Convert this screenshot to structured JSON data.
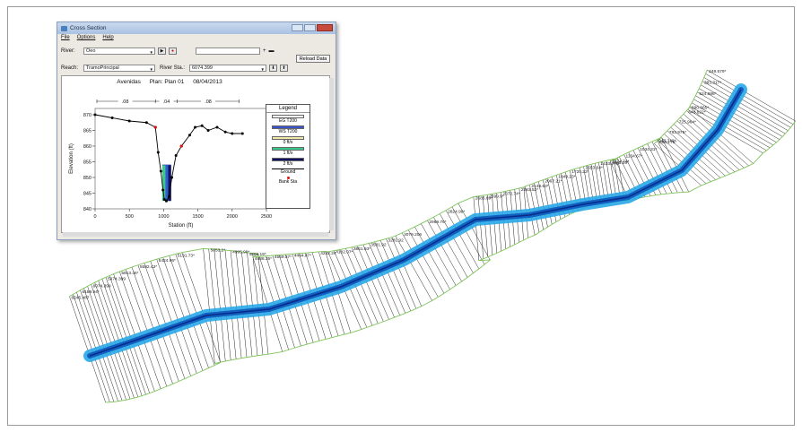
{
  "window": {
    "title": "Cross Section",
    "menu": [
      "File",
      "Options",
      "Help"
    ],
    "river_label": "River:",
    "river_value": "Oeo",
    "reach_label": "Reach:",
    "reach_value": "TramoPrincipal",
    "river_sta_label": "River Sta.:",
    "river_sta_value": "6074.399",
    "reload_label": "Reload Data"
  },
  "plot": {
    "title_parts": [
      "Avenidas",
      "Plan: Plan 01",
      "08/04/2013"
    ],
    "xlabel": "Station (ft)",
    "ylabel": "Elevation (ft)",
    "x_ticks": [
      "0",
      "500",
      "1000",
      "1500",
      "2000",
      "2500"
    ],
    "y_ticks": [
      "870",
      "865",
      "860",
      "855",
      "850",
      "845",
      "840"
    ],
    "manning": [
      ".08",
      ".04",
      ".08"
    ]
  },
  "legend": {
    "title": "Legend",
    "items": [
      {
        "label": "EG T200",
        "color": "#ffffff"
      },
      {
        "label": "WS T200",
        "color": "#3a52c8"
      },
      {
        "label": "0 ft/s",
        "color": "#f0e6a8"
      },
      {
        "label": "1 ft/s",
        "color": "#39c98a"
      },
      {
        "label": "2 ft/s",
        "color": "#101060"
      },
      {
        "label": "Ground",
        "color": "#000000"
      },
      {
        "label": "Bank Sta",
        "color": "#e01010"
      }
    ]
  },
  "chart_data": {
    "type": "line",
    "title": "Avenidas  Plan: Plan 01  08/04/2013",
    "xlabel": "Station (ft)",
    "ylabel": "Elevation (ft)",
    "xlim": [
      0,
      2500
    ],
    "ylim": [
      840,
      872
    ],
    "series": [
      {
        "name": "Ground",
        "x": [
          0,
          250,
          500,
          750,
          880,
          920,
          960,
          990,
          1010,
          1040,
          1080,
          1120,
          1180,
          1260,
          1380,
          1460,
          1560,
          1650,
          1780,
          1900,
          2000,
          2150
        ],
        "y": [
          870,
          869,
          868,
          867.5,
          866,
          858,
          852,
          846,
          843,
          842.5,
          844,
          850,
          857,
          860,
          863.5,
          866,
          866.5,
          865,
          866,
          864.5,
          864,
          864
        ]
      },
      {
        "name": "WS T200",
        "x": [
          980,
          1110
        ],
        "y": [
          854,
          854
        ]
      }
    ],
    "channel_fill_colors": [
      "#39c98a",
      "#2d63c8",
      "#101060"
    ]
  },
  "plan_labels": [
    "249.579*",
    "383.317*",
    "524.986*",
    "690.665*",
    "646.822*",
    "725.964*",
    "793.975*",
    "853.175*",
    "943.740*",
    "1034.31*",
    "1134.67*",
    "1185.25*",
    "1274.74*",
    "1433.270",
    "1553.64*",
    "1720.22*",
    "1849.23*",
    "2067.21*",
    "2148.63*",
    "2263.52*",
    "2372.74*",
    "2599.9*",
    "2686.89*",
    "2824.99*",
    "2969.79*",
    "3079.206",
    "3281.92",
    "3581.92",
    "3861.93*",
    "4182.07*",
    "4242.24",
    "4444.87*",
    "4569.57*",
    "4688.35*",
    "4888.19*",
    "4995.98*",
    "5053.2*",
    "5131.73*",
    "5424.96*",
    "5582.43*",
    "5813.46*",
    "5974.399",
    "6074.399",
    "6159.94*",
    "6245.487"
  ]
}
